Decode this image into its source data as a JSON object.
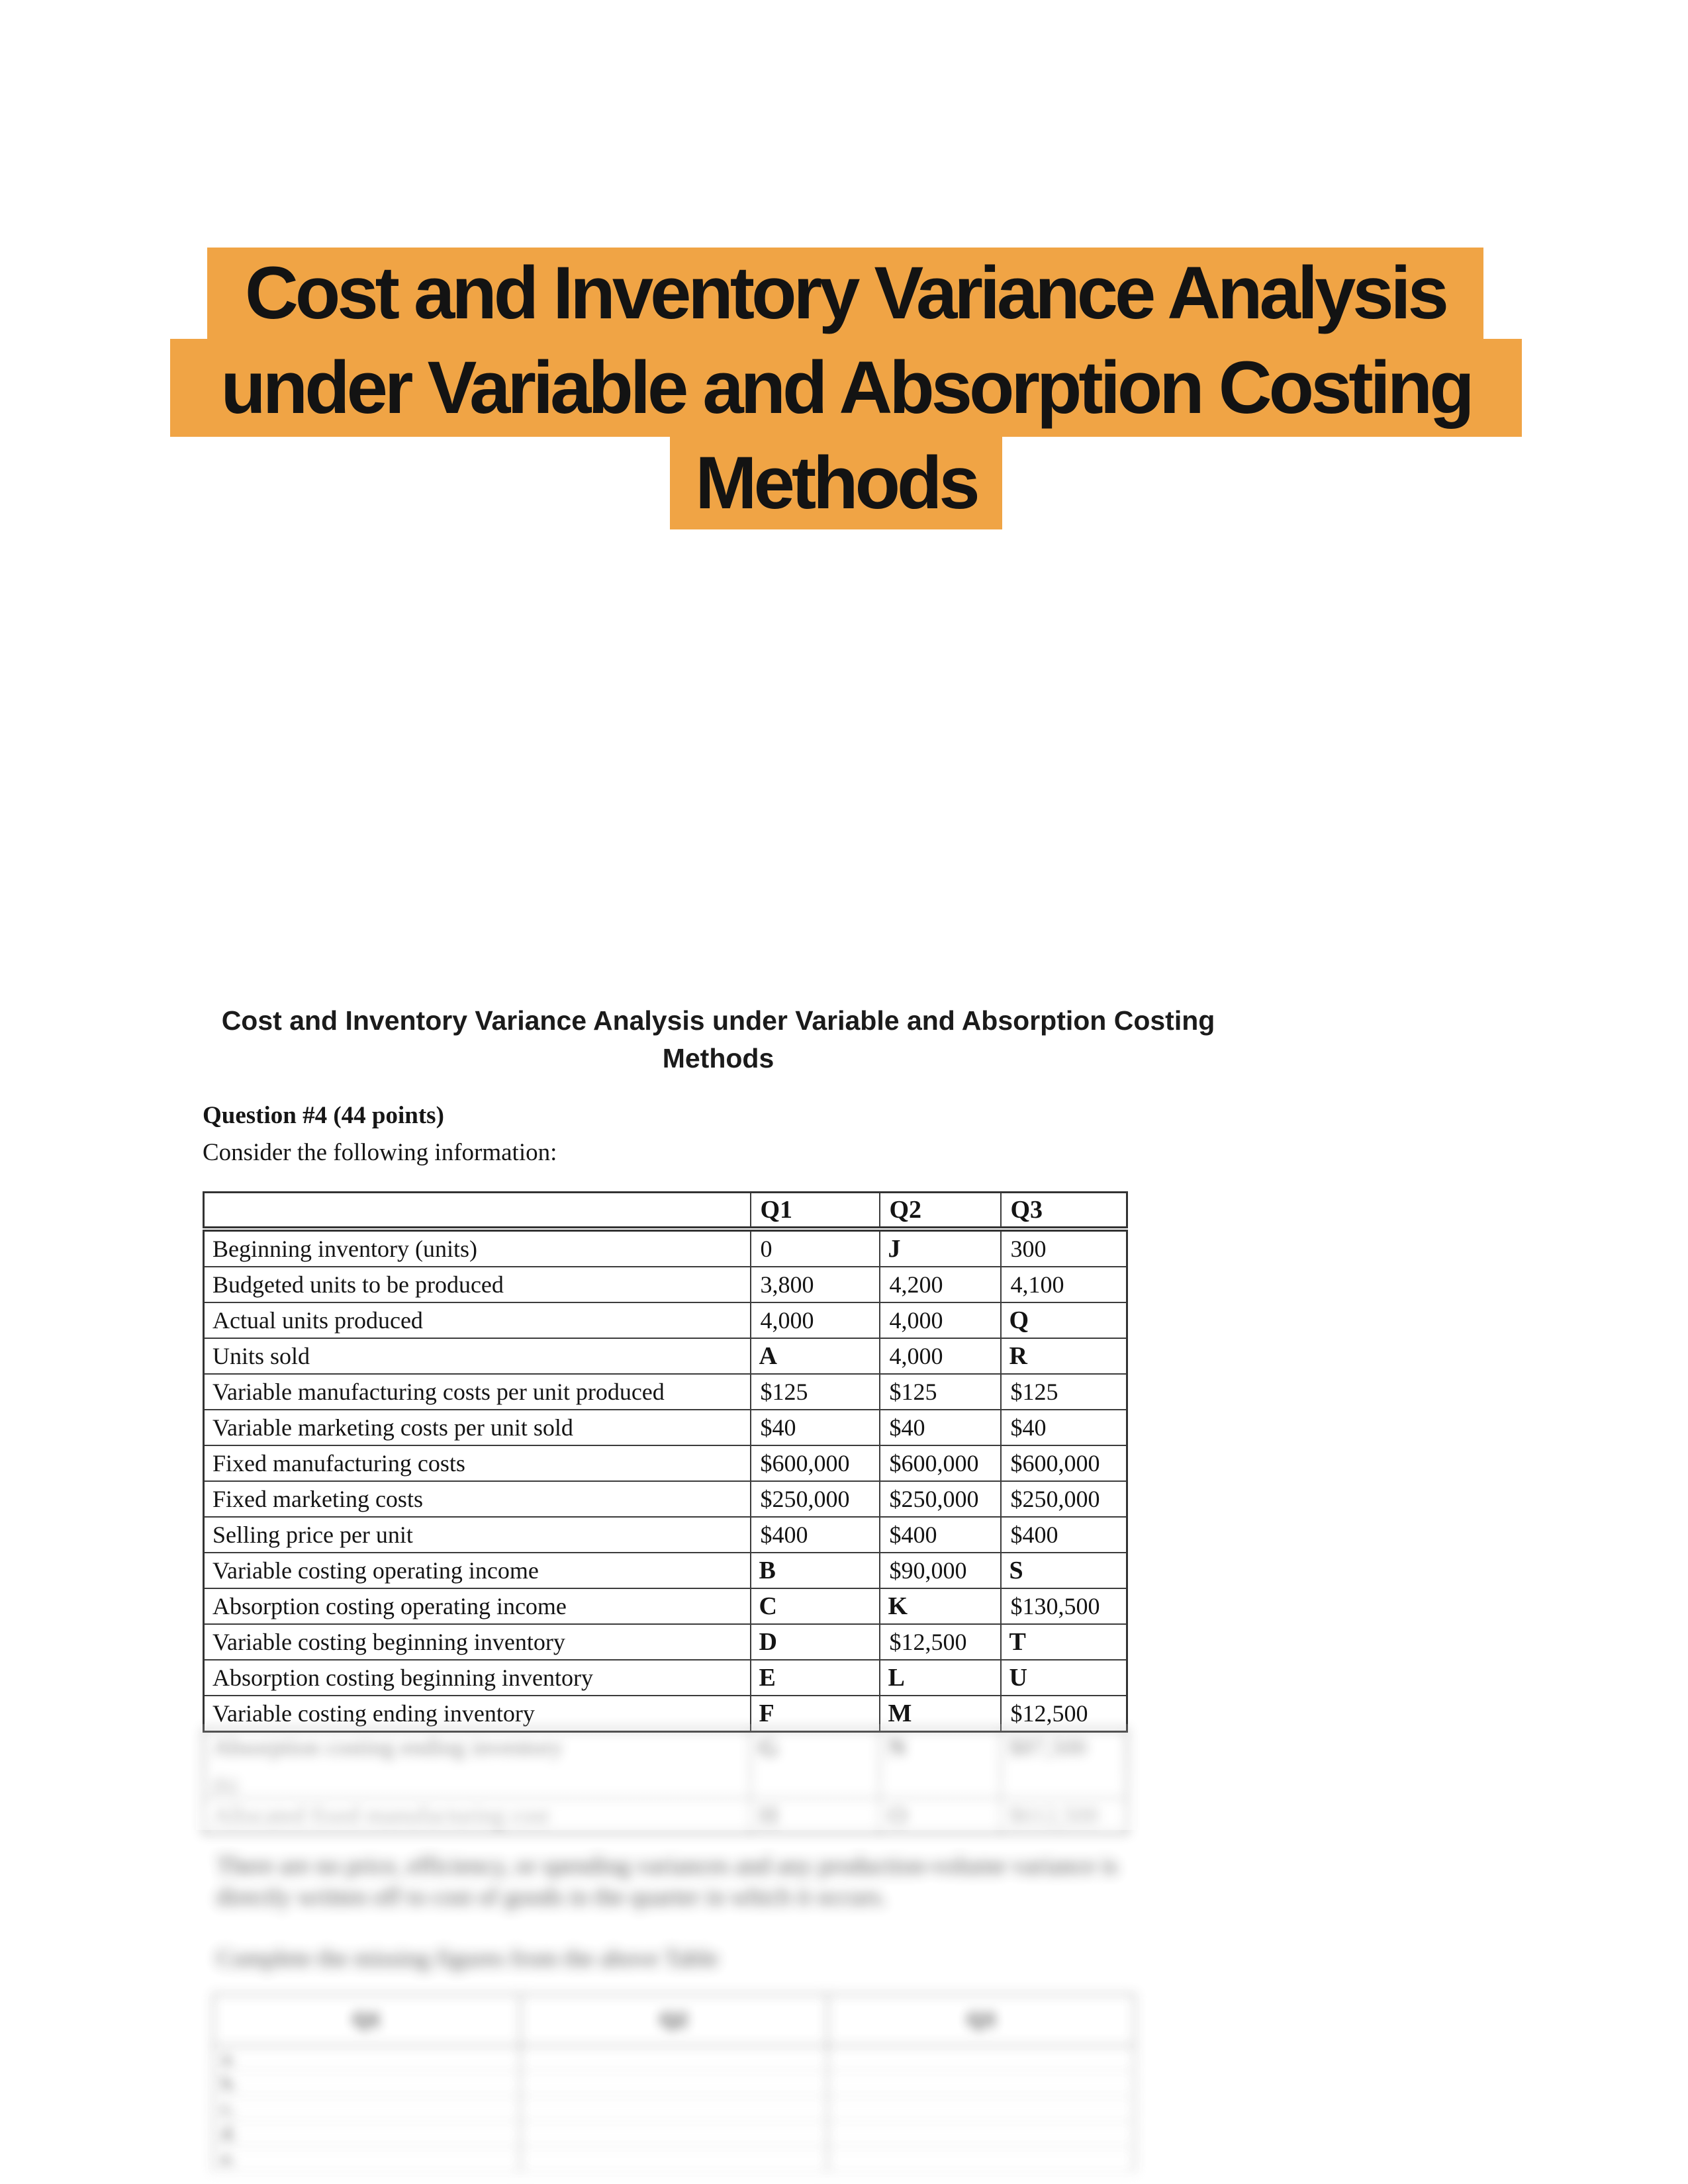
{
  "page_background": "#ffffff",
  "title": {
    "highlight_color": "#f0a445",
    "text_color": "#131313",
    "lines": [
      "Cost and Inventory Variance Analysis",
      "under Variable and Absorption Costing",
      "Methods"
    ]
  },
  "doc": {
    "heading_line1": "Cost and Inventory Variance Analysis under Variable and Absorption Costing",
    "heading_line2": "Methods",
    "question_title": "Question #4 (44 points)",
    "intro": "Consider the following information:",
    "main_table": {
      "headers": [
        "",
        "Q1",
        "Q2",
        "Q3"
      ],
      "rows": [
        [
          "Beginning inventory (units)",
          "0",
          "J",
          "300"
        ],
        [
          "Budgeted units to be produced",
          "3,800",
          "4,200",
          "4,100"
        ],
        [
          "Actual units produced",
          "4,000",
          "4,000",
          "Q"
        ],
        [
          "Units sold",
          "A",
          "4,000",
          "R"
        ],
        [
          "Variable manufacturing costs per unit produced",
          "$125",
          "$125",
          "$125"
        ],
        [
          "Variable marketing costs per unit sold",
          "$40",
          "$40",
          "$40"
        ],
        [
          "Fixed manufacturing costs",
          "$600,000",
          "$600,000",
          "$600,000"
        ],
        [
          "Fixed marketing costs",
          "$250,000",
          "$250,000",
          "$250,000"
        ],
        [
          "Selling price per unit",
          "$400",
          "$400",
          "$400"
        ],
        [
          "Variable costing operating income",
          "B",
          "$90,000",
          "S"
        ],
        [
          "Absorption costing operating income",
          "C",
          "K",
          "$130,500"
        ],
        [
          "Variable costing beginning inventory",
          "D",
          "$12,500",
          "T"
        ],
        [
          "Absorption costing beginning inventory",
          "E",
          "L",
          "U"
        ],
        [
          "Variable costing ending inventory",
          "F",
          "M",
          "$12,500"
        ]
      ]
    },
    "blurred_continuation_rows": [
      {
        "label": "Absorption costing ending inventory",
        "sub": "(b)",
        "cells": [
          "G",
          "N",
          "$87,500"
        ]
      },
      {
        "label": "Allocated fixed manufacturing cost",
        "sub": "",
        "cells": [
          "H",
          "O",
          "$612,500"
        ]
      }
    ],
    "blurred_paragraph_line1": "There are no price, efficiency, or spending variances and any production-volume variance is",
    "blurred_paragraph_line2": "directly written off to cost of goods in the quarter in which it occurs.",
    "blurred_instruction": "Complete the missing figures from the above Table",
    "answer_table": {
      "headers": [
        "Q1",
        "Q2",
        "Q3"
      ],
      "row_letters": [
        "a.",
        "b.",
        "c.",
        "d.",
        "e."
      ]
    }
  }
}
